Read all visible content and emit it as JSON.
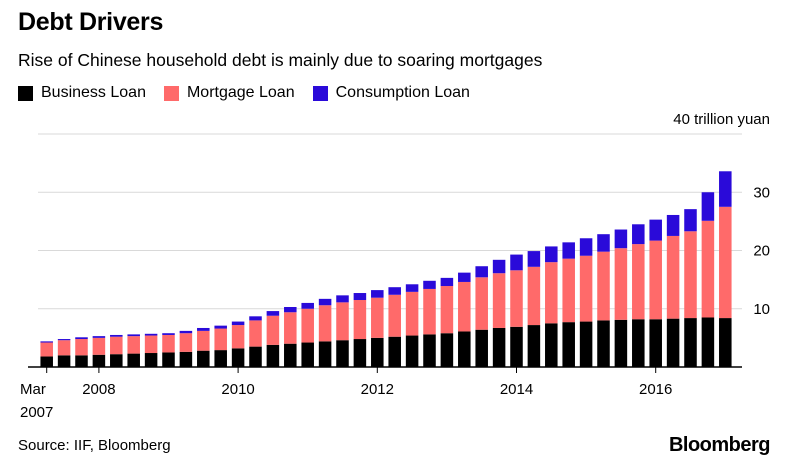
{
  "header": {
    "title": "Debt Drivers",
    "subtitle": "Rise of Chinese household debt is mainly due to soaring mortgages"
  },
  "footer": {
    "source": "Source: IIF, Bloomberg",
    "brand": "Bloomberg"
  },
  "colors": {
    "business": "#000000",
    "mortgage": "#ff6a6a",
    "consumption": "#2a0ad9",
    "grid": "#d9d9d9",
    "axis": "#000000"
  },
  "chart_data": {
    "type": "bar",
    "stacked": true,
    "title": "Debt Drivers",
    "subtitle": "Rise of Chinese household debt is mainly due to soaring mortgages",
    "unit_label": "40 trillion yuan",
    "ylim": [
      0,
      40
    ],
    "y_ticks": [
      10,
      20,
      30
    ],
    "y_axis_side": "right",
    "grid": true,
    "legend_position": "top-left",
    "x_tick_labels": [
      {
        "index": 0,
        "label": "Mar",
        "label2": "2007"
      },
      {
        "index": 3,
        "label": "2008"
      },
      {
        "index": 11,
        "label": "2010"
      },
      {
        "index": 19,
        "label": "2012"
      },
      {
        "index": 27,
        "label": "2014"
      },
      {
        "index": 35,
        "label": "2016"
      }
    ],
    "categories": [
      "2007Q1",
      "2007Q2",
      "2007Q3",
      "2007Q4",
      "2008Q1",
      "2008Q2",
      "2008Q3",
      "2008Q4",
      "2009Q1",
      "2009Q2",
      "2009Q3",
      "2009Q4",
      "2010Q1",
      "2010Q2",
      "2010Q3",
      "2010Q4",
      "2011Q1",
      "2011Q2",
      "2011Q3",
      "2011Q4",
      "2012Q1",
      "2012Q2",
      "2012Q3",
      "2012Q4",
      "2013Q1",
      "2013Q2",
      "2013Q3",
      "2013Q4",
      "2014Q1",
      "2014Q2",
      "2014Q3",
      "2014Q4",
      "2015Q1",
      "2015Q2",
      "2015Q3",
      "2015Q4",
      "2016Q1",
      "2016Q2",
      "2016Q3",
      "2016Q4"
    ],
    "series": [
      {
        "name": "Business Loan",
        "color": "#000000",
        "values": [
          1.8,
          2.0,
          2.0,
          2.1,
          2.2,
          2.3,
          2.4,
          2.5,
          2.6,
          2.8,
          2.9,
          3.2,
          3.5,
          3.8,
          4.0,
          4.2,
          4.4,
          4.6,
          4.8,
          5.0,
          5.2,
          5.4,
          5.6,
          5.8,
          6.1,
          6.4,
          6.7,
          6.9,
          7.2,
          7.5,
          7.7,
          7.8,
          8.0,
          8.1,
          8.2,
          8.2,
          8.3,
          8.4,
          8.5,
          8.4
        ]
      },
      {
        "name": "Mortgage Loan",
        "color": "#ff6a6a",
        "values": [
          2.4,
          2.6,
          2.8,
          2.9,
          3.0,
          3.0,
          3.0,
          3.0,
          3.2,
          3.4,
          3.7,
          4.0,
          4.5,
          5.0,
          5.4,
          5.8,
          6.2,
          6.5,
          6.7,
          6.9,
          7.2,
          7.5,
          7.8,
          8.1,
          8.5,
          9.0,
          9.4,
          9.7,
          10.0,
          10.5,
          10.9,
          11.3,
          11.8,
          12.3,
          12.9,
          13.5,
          14.2,
          14.9,
          16.6,
          19.1
        ]
      },
      {
        "name": "Consumption Loan",
        "color": "#2a0ad9",
        "values": [
          0.2,
          0.2,
          0.3,
          0.3,
          0.3,
          0.3,
          0.3,
          0.3,
          0.4,
          0.5,
          0.5,
          0.6,
          0.7,
          0.8,
          0.9,
          1.0,
          1.1,
          1.2,
          1.2,
          1.3,
          1.3,
          1.3,
          1.4,
          1.4,
          1.6,
          1.9,
          2.3,
          2.7,
          2.7,
          2.7,
          2.8,
          3.0,
          3.0,
          3.2,
          3.4,
          3.6,
          3.6,
          3.8,
          4.9,
          6.1
        ]
      }
    ]
  }
}
